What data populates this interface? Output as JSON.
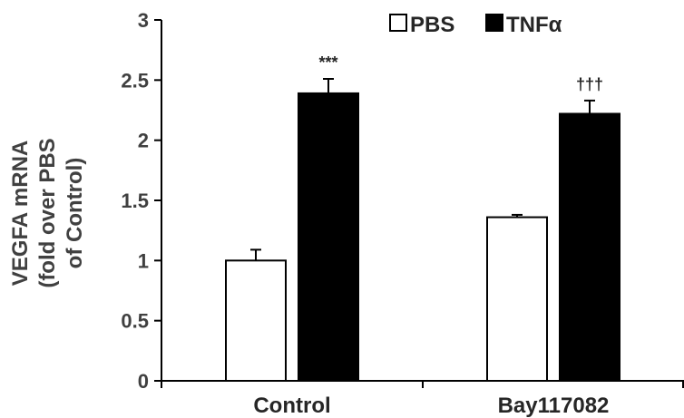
{
  "chart_data": {
    "type": "bar",
    "title": "",
    "ylabel_lines": [
      "VEGFA mRNA",
      "(fold over PBS",
      "of Control)"
    ],
    "xlabel": "",
    "categories": [
      "Control",
      "Bay117082"
    ],
    "ylim": [
      0,
      3
    ],
    "yticks": [
      0,
      0.5,
      1,
      1.5,
      2,
      2.5,
      3
    ],
    "ytick_labels": [
      "0",
      "0.5",
      "1",
      "1.5",
      "2",
      "2.5",
      "3"
    ],
    "legend_position": "top-right",
    "grid": false,
    "series": [
      {
        "name": "PBS",
        "values": [
          1.0,
          1.36
        ],
        "errors": [
          0.09,
          0.02
        ],
        "fill": "#ffffff",
        "stroke": "#000000"
      },
      {
        "name": "TNFα",
        "values": [
          2.39,
          2.22
        ],
        "errors": [
          0.12,
          0.11
        ],
        "fill": "#000000",
        "stroke": "#000000"
      }
    ],
    "annotations": [
      {
        "category": 0,
        "series": 1,
        "text": "***"
      },
      {
        "category": 1,
        "series": 1,
        "text": "†††"
      }
    ]
  }
}
